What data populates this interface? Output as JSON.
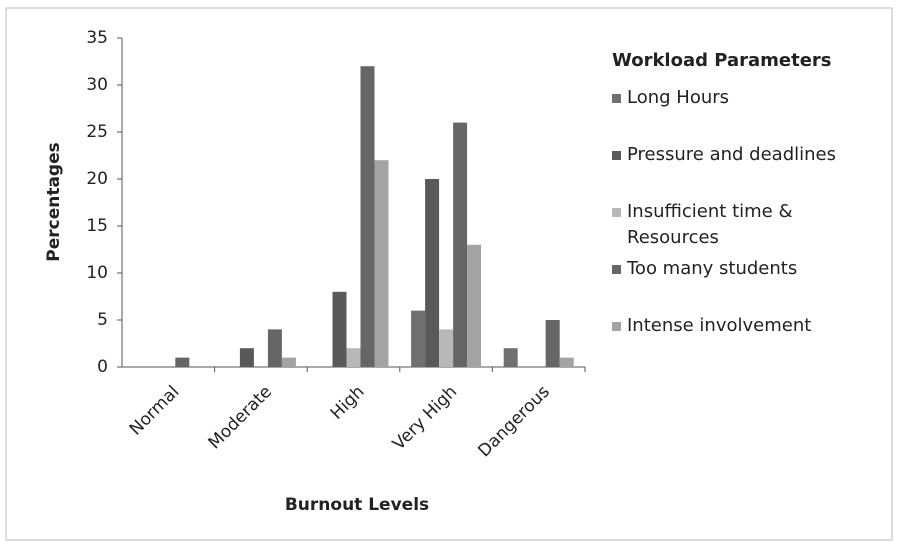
{
  "chart_data": {
    "type": "bar",
    "x_label": "Burnout Levels",
    "y_label": "Percentages",
    "legend_title": "Workload Parameters",
    "legend_position": "right",
    "categories": [
      "Normal",
      "Moderate",
      "High",
      "Very High",
      "Dangerous"
    ],
    "series": [
      {
        "name": "Long Hours",
        "color": "#707070",
        "values": [
          0,
          0,
          0,
          6,
          2
        ]
      },
      {
        "name": "Pressure and deadlines",
        "color": "#595959",
        "values": [
          0,
          2,
          8,
          20,
          0
        ]
      },
      {
        "name": "Insufficient time & Resources",
        "color": "#b8b8b8",
        "values": [
          0,
          0,
          2,
          4,
          0
        ]
      },
      {
        "name": "Too many students",
        "color": "#666666",
        "values": [
          1,
          4,
          32,
          26,
          5
        ]
      },
      {
        "name": "Intense involvement",
        "color": "#a3a3a3",
        "values": [
          0,
          1,
          22,
          13,
          1
        ]
      }
    ],
    "ylim": [
      0,
      35
    ],
    "yticks": [
      0,
      5,
      10,
      15,
      20,
      25,
      30,
      35
    ],
    "grid": false
  }
}
